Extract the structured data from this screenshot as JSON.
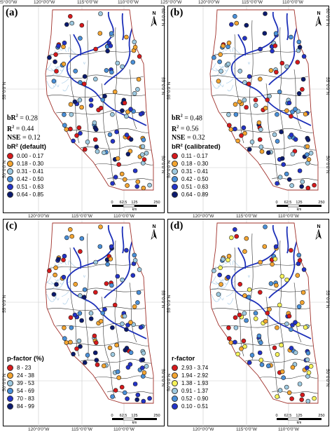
{
  "coords": {
    "lon_top": [
      "125°0'0\"W",
      "120°0'0\"W",
      "115°0'0\"W",
      "110°0'0\"W"
    ],
    "lon_bottom": [
      "120°0'0\"W",
      "115°0'0\"W",
      "110°0'0\"W"
    ],
    "lat_right_top": "60°0'0\"N",
    "lat_left": [
      "55°0'0\"N",
      "50°0'0\"N"
    ],
    "lat_right": [
      "55°0'0\"N",
      "50°0'0\"N"
    ]
  },
  "scale": {
    "ticks": [
      "0",
      "62.5",
      "125",
      "250"
    ],
    "unit": "km"
  },
  "north_label": "N",
  "panels": [
    {
      "tag": "(a)",
      "stats": [
        {
          "label": "bR",
          "sup": "2",
          "sep": " = ",
          "value": "0.28"
        },
        {
          "label": "R",
          "sup": "2",
          "sep": " = ",
          "value": "0.44"
        },
        {
          "label": "NSE",
          "sup": "",
          "sep": " = ",
          "value": "0.12"
        }
      ],
      "legend_title": "bR² (default)",
      "legend": [
        {
          "label": "0.00 - 0.17",
          "color": "#d7191c"
        },
        {
          "label": "0.18 - 0.30",
          "color": "#f4a531"
        },
        {
          "label": "0.31 - 0.41",
          "color": "#9ecae1"
        },
        {
          "label": "0.42 - 0.50",
          "color": "#4a90d9"
        },
        {
          "label": "0.51 - 0.63",
          "color": "#2333c8"
        },
        {
          "label": "0.64 - 0.85",
          "color": "#0b1a6e"
        }
      ]
    },
    {
      "tag": "(b)",
      "stats": [
        {
          "label": "bR",
          "sup": "2",
          "sep": " = ",
          "value": "0.48"
        },
        {
          "label": "R",
          "sup": "2",
          "sep": " = ",
          "value": "0.56"
        },
        {
          "label": "NSE",
          "sup": "",
          "sep": " = ",
          "value": "0.32"
        }
      ],
      "legend_title": "bR² (calibrated)",
      "legend": [
        {
          "label": "0.11 - 0.17",
          "color": "#d7191c"
        },
        {
          "label": "0.18 - 0.30",
          "color": "#f4a531"
        },
        {
          "label": "0.31 - 0.41",
          "color": "#9ecae1"
        },
        {
          "label": "0.42 - 0.50",
          "color": "#4a90d9"
        },
        {
          "label": "0.51 - 0.63",
          "color": "#2333c8"
        },
        {
          "label": "0.64 - 0.89",
          "color": "#0b1a6e"
        }
      ]
    },
    {
      "tag": "(c)",
      "stats": [],
      "legend_title": "p-factor (%)",
      "legend": [
        {
          "label": "8 - 23",
          "color": "#d7191c"
        },
        {
          "label": "24 - 38",
          "color": "#f4a531"
        },
        {
          "label": "39 - 53",
          "color": "#9ecae1"
        },
        {
          "label": "54 - 69",
          "color": "#4a90d9"
        },
        {
          "label": "70 - 83",
          "color": "#2333c8"
        },
        {
          "label": "84 - 99",
          "color": "#0b1a6e"
        }
      ]
    },
    {
      "tag": "(d)",
      "stats": [],
      "legend_title": "r-factor",
      "legend": [
        {
          "label": "2.93 - 3.74",
          "color": "#d7191c"
        },
        {
          "label": "1.94 - 2.92",
          "color": "#f4a531"
        },
        {
          "label": "1.38 - 1.93",
          "color": "#f6f35a"
        },
        {
          "label": "0.91 - 1.37",
          "color": "#9ecae1"
        },
        {
          "label": "0.52 - 0.90",
          "color": "#4a90d9"
        },
        {
          "label": "0.10 - 0.51",
          "color": "#2333c8"
        }
      ]
    }
  ]
}
